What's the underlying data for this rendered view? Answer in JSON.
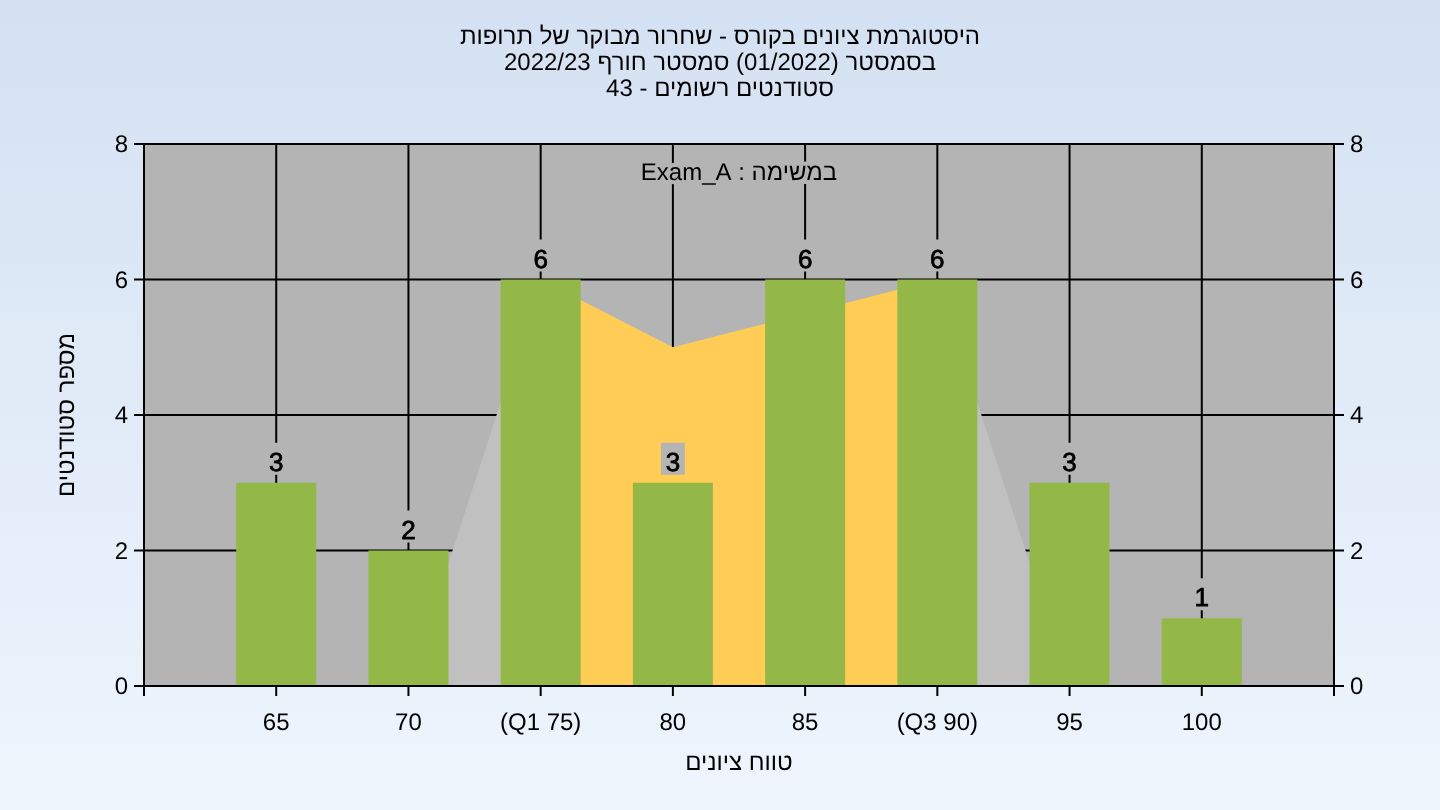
{
  "chart_data": {
    "type": "bar",
    "title": "היסטוגרמת ציונים בקורס - שחרור מבוקר של תרופות",
    "subtitle": "בסמסטר  (01/2022)  סמסטר חורף 2022/23\nסטודנטים רשומים - 43",
    "annotations": [
      "במשימה : Exam_A"
    ],
    "xlabel": "טווח ציונים",
    "ylabel": "מספר סטודנטים",
    "categories": [
      "65",
      "70",
      "(Q1 75)",
      "80",
      "85",
      "(Q3 90)",
      "95",
      "100"
    ],
    "series": [
      {
        "type": "area",
        "color": "#c0c0c0",
        "values": [
          null,
          0,
          6,
          null,
          null,
          null,
          null,
          null
        ]
      },
      {
        "type": "area",
        "color": "#c0c0c0",
        "values": [
          null,
          null,
          null,
          null,
          null,
          6,
          0,
          null
        ]
      },
      {
        "type": "area",
        "color": "#ffcc55",
        "values": [
          null,
          null,
          6,
          5,
          null,
          6,
          null,
          null
        ]
      },
      {
        "type": "bar",
        "color": "#93b847",
        "values": [
          3,
          2,
          6,
          3,
          6,
          6,
          3,
          1
        ],
        "value_labels": [
          "3",
          "2",
          "6",
          "3",
          "6",
          "6",
          "3",
          "1"
        ]
      }
    ],
    "ylim": [
      0,
      8
    ],
    "yticks": [
      0,
      2,
      4,
      6,
      8
    ],
    "y2lim": [
      0,
      8
    ],
    "y2ticks": [
      0,
      2,
      4,
      6,
      8
    ],
    "grid": true
  }
}
